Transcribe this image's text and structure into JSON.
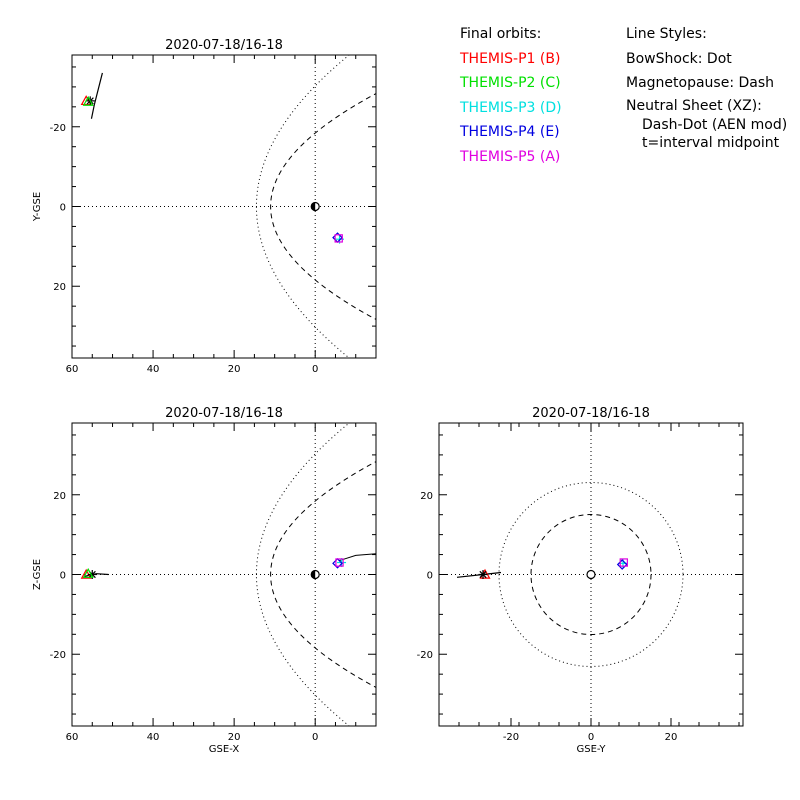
{
  "legend_orbits": {
    "title": "Final orbits:",
    "items": [
      {
        "label": "THEMIS-P1 (B)",
        "color": "#ff0000"
      },
      {
        "label": "THEMIS-P2 (C)",
        "color": "#00e000"
      },
      {
        "label": "THEMIS-P3 (D)",
        "color": "#00e0e0"
      },
      {
        "label": "THEMIS-P4 (E)",
        "color": "#0000e0"
      },
      {
        "label": "THEMIS-P5 (A)",
        "color": "#e000e0"
      }
    ]
  },
  "legend_styles": {
    "title": "Line Styles:",
    "bowshock": "BowShock: Dot",
    "magnetopause": "Magnetopause: Dash",
    "neutral_sheet": "Neutral Sheet (XZ):",
    "neutral_sheet_detail": "Dash-Dot (AEN mod)",
    "time_note": "t=interval midpoint"
  },
  "chart_data": [
    {
      "type": "scatter",
      "title": "2020-07-18/16-18",
      "xlabel": "",
      "ylabel": "Y-GSE",
      "xlim": [
        60,
        -15
      ],
      "ylim": [
        -38,
        38
      ],
      "y_inverted": true,
      "xticks": [
        60,
        40,
        20,
        0
      ],
      "yticks": [
        -20,
        0,
        20
      ],
      "grid": "zero-lines",
      "bowshock": {
        "nose": 14.5,
        "wing": 32
      },
      "magnetopause": {
        "nose": 11,
        "wing": 21
      },
      "tracks": [
        {
          "name": "P1/P2 track",
          "points": [
            [
              55.2,
              -22
            ],
            [
              54.5,
              -25.5
            ],
            [
              52.5,
              -33.5
            ]
          ]
        }
      ],
      "markers": [
        {
          "probe": "P1",
          "x": 56.5,
          "y": -26.5,
          "symbol": "triangle",
          "color": "#ff0000"
        },
        {
          "probe": "P2",
          "x": 55.5,
          "y": -26.5,
          "symbol": "star",
          "color": "#000000"
        },
        {
          "probe": "P2b",
          "x": 56.0,
          "y": -26.3,
          "symbol": "triangle",
          "color": "#00e000"
        },
        {
          "probe": "P3",
          "x": -6.0,
          "y": 8.2,
          "symbol": "plus",
          "color": "#00e0e0"
        },
        {
          "probe": "P4",
          "x": -5.5,
          "y": 7.8,
          "symbol": "diamond",
          "color": "#0000e0"
        },
        {
          "probe": "P5",
          "x": -5.8,
          "y": 8.0,
          "symbol": "square",
          "color": "#e000e0"
        }
      ]
    },
    {
      "type": "scatter",
      "title": "2020-07-18/16-18",
      "xlabel": "GSE-X",
      "ylabel": "Z-GSE",
      "xlim": [
        60,
        -15
      ],
      "ylim": [
        -38,
        38
      ],
      "y_inverted": false,
      "xticks": [
        60,
        40,
        20,
        0
      ],
      "yticks": [
        -20,
        0,
        20
      ],
      "grid": "zero-lines",
      "bowshock": {
        "nose": 14.5,
        "wing": 32
      },
      "magnetopause": {
        "nose": 11,
        "wing": 21
      },
      "neutral_sheet": [
        [
          -6,
          3.5
        ],
        [
          -10,
          4.8
        ],
        [
          -15,
          5.2
        ]
      ],
      "tracks": [
        {
          "name": "P1/P2 track",
          "points": [
            [
              57,
              -0.5
            ],
            [
              54,
              0.2
            ],
            [
              51,
              0.0
            ]
          ]
        }
      ],
      "markers": [
        {
          "probe": "P1",
          "x": 56.5,
          "y": 0.0,
          "symbol": "triangle",
          "color": "#ff0000"
        },
        {
          "probe": "P2",
          "x": 55.0,
          "y": 0.0,
          "symbol": "star",
          "color": "#000000"
        },
        {
          "probe": "P2b",
          "x": 56.0,
          "y": 0.2,
          "symbol": "triangle",
          "color": "#00e000"
        },
        {
          "probe": "P3",
          "x": -6.5,
          "y": 3.0,
          "symbol": "plus",
          "color": "#00e0e0"
        },
        {
          "probe": "P4",
          "x": -5.5,
          "y": 2.8,
          "symbol": "diamond",
          "color": "#0000e0"
        },
        {
          "probe": "P5",
          "x": -6.0,
          "y": 3.0,
          "symbol": "square",
          "color": "#e000e0"
        }
      ]
    },
    {
      "type": "scatter",
      "title": "2020-07-18/16-18",
      "xlabel": "GSE-Y",
      "ylabel": "",
      "xlim": [
        -38,
        38
      ],
      "ylim": [
        -38,
        38
      ],
      "y_inverted": false,
      "xticks": [
        -20,
        0,
        20
      ],
      "yticks": [
        -20,
        0,
        20
      ],
      "grid": "zero-lines",
      "circles": [
        {
          "r": 23,
          "style": "dot"
        },
        {
          "r": 15,
          "style": "dash"
        }
      ],
      "tracks": [
        {
          "name": "P1/P2 track",
          "points": [
            [
              -33.5,
              -0.7
            ],
            [
              -27,
              0.0
            ],
            [
              -22.5,
              0.5
            ]
          ]
        }
      ],
      "markers": [
        {
          "probe": "P1",
          "x": -26.5,
          "y": 0.0,
          "symbol": "triangle",
          "color": "#ff0000"
        },
        {
          "probe": "P2",
          "x": -27.0,
          "y": 0.0,
          "symbol": "star",
          "color": "#000000"
        },
        {
          "probe": "P3",
          "x": 8.0,
          "y": 2.8,
          "symbol": "plus",
          "color": "#00e0e0"
        },
        {
          "probe": "P4",
          "x": 7.8,
          "y": 2.5,
          "symbol": "diamond",
          "color": "#0000e0"
        },
        {
          "probe": "P5",
          "x": 8.2,
          "y": 3.0,
          "symbol": "square",
          "color": "#e000e0"
        }
      ]
    }
  ]
}
